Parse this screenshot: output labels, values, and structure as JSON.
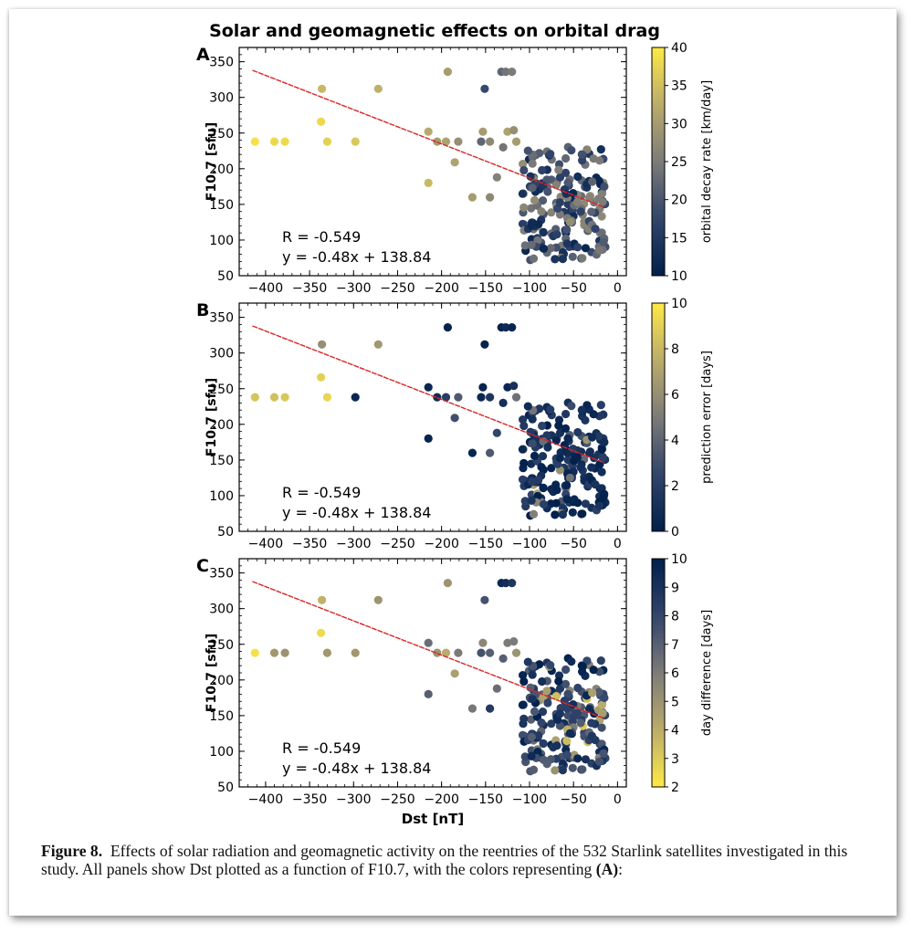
{
  "figure_title": "Solar and geomagnetic effects on orbital drag",
  "caption": {
    "label": "Figure 8.",
    "text": "Effects of solar radiation and geomagnetic activity on the reentries of the 532 Starlink satellites investigated in this study. All panels show Dst plotted as a function of F10.7, with the colors representing",
    "ref": "(A)",
    "tail": ":"
  },
  "colors": {
    "fit_line": "#d62728",
    "cmap_low": "#00204c",
    "cmap_mid": "#7c7b78",
    "cmap_high": "#ffe945",
    "frame": "#000000"
  },
  "chart_data": [
    {
      "type": "scatter",
      "panel_label": "A",
      "xlabel": "",
      "ylabel": "F10.7 [sfu]",
      "xlim": [
        -430,
        10
      ],
      "ylim": [
        50,
        370
      ],
      "xticks": [
        -400,
        -350,
        -300,
        -250,
        -200,
        -150,
        -100,
        -50,
        0
      ],
      "yticks": [
        50,
        100,
        150,
        200,
        250,
        300,
        350
      ],
      "colorbar": {
        "label": "orbital decay rate [km/day]",
        "range": [
          10,
          40
        ],
        "ticks": [
          10,
          15,
          20,
          25,
          30,
          35,
          40
        ],
        "reversed": false
      },
      "fit": {
        "slope": -0.48,
        "intercept": 138.84,
        "r_text": "R = -0.549",
        "eq_text": "y = -0.48x + 138.84",
        "x_range": [
          -415,
          -15
        ]
      },
      "seed": 1
    },
    {
      "type": "scatter",
      "panel_label": "B",
      "xlabel": "",
      "ylabel": "F10.7 [sfu]",
      "xlim": [
        -430,
        10
      ],
      "ylim": [
        50,
        370
      ],
      "xticks": [
        -400,
        -350,
        -300,
        -250,
        -200,
        -150,
        -100,
        -50,
        0
      ],
      "yticks": [
        50,
        100,
        150,
        200,
        250,
        300,
        350
      ],
      "colorbar": {
        "label": "prediction error [days]",
        "range": [
          0,
          10
        ],
        "ticks": [
          0,
          2,
          4,
          6,
          8,
          10
        ],
        "reversed": false
      },
      "fit": {
        "slope": -0.48,
        "intercept": 138.84,
        "r_text": "R = -0.549",
        "eq_text": "y = -0.48x + 138.84",
        "x_range": [
          -415,
          -15
        ]
      },
      "seed": 2
    },
    {
      "type": "scatter",
      "panel_label": "C",
      "xlabel": "Dst [nT]",
      "ylabel": "F10.7 [sfu]",
      "xlim": [
        -430,
        10
      ],
      "ylim": [
        50,
        370
      ],
      "xticks": [
        -400,
        -350,
        -300,
        -250,
        -200,
        -150,
        -100,
        -50,
        0
      ],
      "yticks": [
        50,
        100,
        150,
        200,
        250,
        300,
        350
      ],
      "colorbar": {
        "label": "day difference [days]",
        "range": [
          2,
          10
        ],
        "ticks": [
          2,
          3,
          4,
          5,
          6,
          7,
          8,
          9,
          10
        ],
        "reversed": true
      },
      "fit": {
        "slope": -0.48,
        "intercept": 138.84,
        "r_text": "R = -0.549",
        "eq_text": "y = -0.48x + 138.84",
        "x_range": [
          -415,
          -15
        ]
      },
      "seed": 3
    }
  ],
  "storm_points": [
    {
      "dst": -412,
      "f107": 238,
      "a": 39,
      "b": 8.5,
      "c": 2.3
    },
    {
      "dst": -390,
      "f107": 238,
      "a": 38,
      "b": 8.3,
      "c": 4.8
    },
    {
      "dst": -378,
      "f107": 238,
      "a": 38,
      "b": 8.6,
      "c": 5.0
    },
    {
      "dst": -336,
      "f107": 312,
      "a": 34,
      "b": 6.0,
      "c": 3.8
    },
    {
      "dst": -337,
      "f107": 266,
      "a": 38,
      "b": 9.0,
      "c": 2.5
    },
    {
      "dst": -330,
      "f107": 238,
      "a": 37,
      "b": 9.2,
      "c": 4.8
    },
    {
      "dst": -298,
      "f107": 238,
      "a": 36,
      "b": 0.5,
      "c": 4.8
    },
    {
      "dst": -272,
      "f107": 312,
      "a": 33,
      "b": 6.5,
      "c": 5.0
    },
    {
      "dst": -215,
      "f107": 252,
      "a": 32,
      "b": 0.5,
      "c": 6.5
    },
    {
      "dst": -215,
      "f107": 180,
      "a": 34,
      "b": 0.3,
      "c": 7.0
    },
    {
      "dst": -205,
      "f107": 238,
      "a": 30,
      "b": 0.8,
      "c": 5.0
    },
    {
      "dst": -195,
      "f107": 238,
      "a": 31,
      "b": 2.0,
      "c": 4.0
    },
    {
      "dst": -193,
      "f107": 336,
      "a": 30,
      "b": 0.2,
      "c": 5.0
    },
    {
      "dst": -185,
      "f107": 209,
      "a": 31,
      "b": 3.0,
      "c": 4.5
    },
    {
      "dst": -181,
      "f107": 238,
      "a": 28,
      "b": 3.5,
      "c": 6.0
    },
    {
      "dst": -165,
      "f107": 160,
      "a": 30,
      "b": 0.4,
      "c": 6.2
    },
    {
      "dst": -155,
      "f107": 238,
      "a": 22,
      "b": 0.6,
      "c": 7.5
    },
    {
      "dst": -153,
      "f107": 252,
      "a": 30,
      "b": 0.3,
      "c": 5.5
    },
    {
      "dst": -151,
      "f107": 312,
      "a": 18,
      "b": 0.2,
      "c": 7.5
    },
    {
      "dst": -145,
      "f107": 238,
      "a": 27,
      "b": 1.5,
      "c": 7.0
    },
    {
      "dst": -145,
      "f107": 160,
      "a": 27,
      "b": 3.5,
      "c": 8.5
    },
    {
      "dst": -137,
      "f107": 188,
      "a": 26,
      "b": 2.5,
      "c": 6.5
    },
    {
      "dst": -132,
      "f107": 336,
      "a": 22,
      "b": 0.3,
      "c": 9.5
    },
    {
      "dst": -127,
      "f107": 336,
      "a": 24,
      "b": 0.8,
      "c": 9.2
    },
    {
      "dst": -120,
      "f107": 336,
      "a": 25,
      "b": 0.4,
      "c": 8.8
    },
    {
      "dst": -130,
      "f107": 230,
      "a": 24,
      "b": 1.0,
      "c": 7.0
    },
    {
      "dst": -125,
      "f107": 252,
      "a": 31,
      "b": 0.5,
      "c": 6.0
    },
    {
      "dst": -118,
      "f107": 254,
      "a": 28,
      "b": 1.2,
      "c": 6.0
    },
    {
      "dst": -115,
      "f107": 238,
      "a": 30,
      "b": 4.5,
      "c": 5.0
    }
  ]
}
